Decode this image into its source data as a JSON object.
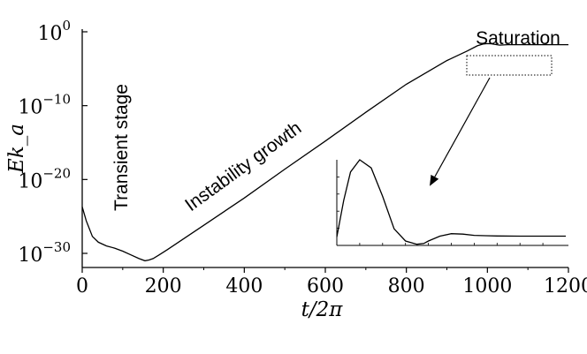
{
  "chart_data": {
    "type": "line",
    "title": "",
    "xlabel": "t/2π",
    "ylabel": "Ek_a",
    "yscale": "log",
    "xlim": [
      0,
      1200
    ],
    "ylim_exponent": [
      -31.2,
      0
    ],
    "x_ticks": [
      0,
      200,
      400,
      600,
      800,
      1000,
      1200
    ],
    "y_ticks": [
      {
        "base": "10",
        "exp": "0",
        "value_exp": 0
      },
      {
        "base": "10",
        "exp": "−10",
        "value_exp": -10
      },
      {
        "base": "10",
        "exp": "−20",
        "value_exp": -20
      },
      {
        "base": "10",
        "exp": "−30",
        "value_exp": -30
      }
    ],
    "series": [
      {
        "name": "Ek_a",
        "x": [
          0,
          10,
          25,
          40,
          60,
          80,
          100,
          120,
          140,
          155,
          165,
          175,
          190,
          210,
          300,
          400,
          500,
          600,
          700,
          800,
          900,
          950,
          975,
          990,
          1000,
          1010,
          1030,
          1050,
          1080,
          1100,
          1200
        ],
        "log10_y": [
          -23.7,
          -25.6,
          -27.7,
          -28.5,
          -29.0,
          -29.3,
          -29.7,
          -30.2,
          -30.7,
          -31.0,
          -30.9,
          -30.7,
          -30.2,
          -29.5,
          -26.2,
          -22.5,
          -18.6,
          -14.8,
          -10.9,
          -7.1,
          -3.9,
          -2.6,
          -1.9,
          -1.65,
          -1.6,
          -1.62,
          -1.8,
          -1.75,
          -1.74,
          -1.74,
          -1.74
        ]
      }
    ],
    "inset_series": {
      "x": [
        0,
        0.03,
        0.06,
        0.1,
        0.15,
        0.2,
        0.25,
        0.3,
        0.35,
        0.38,
        0.4,
        0.45,
        0.5,
        0.55,
        0.6,
        0.65,
        0.7,
        0.8,
        0.9,
        1.0
      ],
      "y": [
        0.05,
        0.5,
        0.85,
        1.0,
        0.9,
        0.55,
        0.15,
        0.0,
        -0.04,
        -0.03,
        0.0,
        0.06,
        0.09,
        0.085,
        0.07,
        0.065,
        0.062,
        0.06,
        0.06,
        0.06
      ]
    },
    "annotations": {
      "transient": "Transient stage",
      "growth": "Instability growth",
      "saturation": "Saturation"
    }
  }
}
